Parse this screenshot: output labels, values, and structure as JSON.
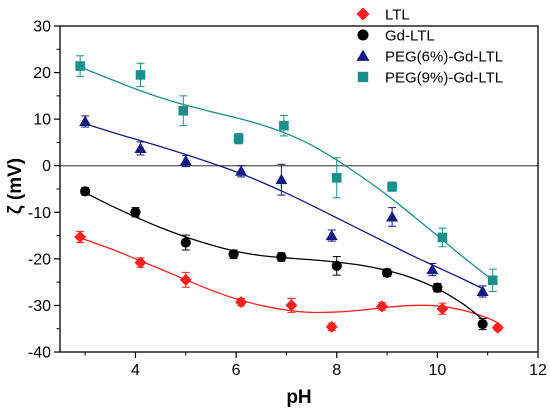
{
  "chart_data": {
    "type": "scatter",
    "xlabel": "pH",
    "ylabel": "ζ (mV)",
    "xlim": [
      2.5,
      12
    ],
    "ylim": [
      -40,
      30
    ],
    "xticks": [
      4,
      6,
      8,
      10,
      12
    ],
    "yticks": [
      -40,
      -30,
      -20,
      -10,
      0,
      10,
      20,
      30
    ],
    "xtick_labels": [
      "4",
      "6",
      "8",
      "10",
      "12"
    ],
    "ytick_labels": [
      "-40",
      "-30",
      "-20",
      "-10",
      "0",
      "10",
      "20",
      "30"
    ],
    "zero_line": true,
    "grid": false,
    "legend_position": "top-right",
    "series": [
      {
        "name": "LTL",
        "marker": "diamond",
        "color": "#ff1f1f",
        "x": [
          2.9,
          4.1,
          5.0,
          6.1,
          7.1,
          7.9,
          8.9,
          10.1,
          11.2
        ],
        "y": [
          -15.3,
          -20.8,
          -24.5,
          -29.3,
          -30.0,
          -34.6,
          -30.2,
          -30.7,
          -34.8
        ],
        "err": [
          1.2,
          1.0,
          1.6,
          0.8,
          1.5,
          0.8,
          0.8,
          1.2,
          0.6
        ],
        "fit": [
          [
            2.9,
            -15.5
          ],
          [
            3.5,
            -17.8
          ],
          [
            4.0,
            -20.0
          ],
          [
            4.5,
            -22.2
          ],
          [
            5.0,
            -24.5
          ],
          [
            5.5,
            -26.7
          ],
          [
            6.0,
            -28.6
          ],
          [
            6.5,
            -30.0
          ],
          [
            7.0,
            -31.0
          ],
          [
            7.5,
            -31.5
          ],
          [
            8.0,
            -31.4
          ],
          [
            8.5,
            -31.0
          ],
          [
            9.0,
            -30.4
          ],
          [
            9.5,
            -30.0
          ],
          [
            10.0,
            -30.1
          ],
          [
            10.5,
            -31.0
          ],
          [
            11.0,
            -32.7
          ],
          [
            11.2,
            -33.8
          ]
        ]
      },
      {
        "name": "Gd-LTL",
        "marker": "circle",
        "color": "#000000",
        "x": [
          3.0,
          4.0,
          5.0,
          5.95,
          6.9,
          8.0,
          9.0,
          10.0,
          10.9
        ],
        "y": [
          -5.5,
          -10.0,
          -16.5,
          -19.0,
          -19.6,
          -21.5,
          -23.0,
          -26.2,
          -34.0
        ],
        "err": [
          0.8,
          1.0,
          1.6,
          0.9,
          0.9,
          2.0,
          0.8,
          0.9,
          1.2
        ],
        "fit": [
          [
            3.0,
            -5.8
          ],
          [
            3.5,
            -8.5
          ],
          [
            4.0,
            -11.0
          ],
          [
            4.5,
            -13.3
          ],
          [
            5.0,
            -15.3
          ],
          [
            5.5,
            -17.0
          ],
          [
            6.0,
            -18.4
          ],
          [
            6.5,
            -19.3
          ],
          [
            7.0,
            -19.8
          ],
          [
            7.5,
            -20.2
          ],
          [
            8.0,
            -20.7
          ],
          [
            8.5,
            -21.4
          ],
          [
            9.0,
            -22.5
          ],
          [
            9.5,
            -24.1
          ],
          [
            10.0,
            -26.4
          ],
          [
            10.5,
            -29.6
          ],
          [
            10.9,
            -33.0
          ]
        ]
      },
      {
        "name": "PEG(6%)-Gd-LTL",
        "marker": "triangle",
        "color": "#141a80",
        "x": [
          3.0,
          4.1,
          5.0,
          6.1,
          6.9,
          7.9,
          9.1,
          9.9,
          10.9
        ],
        "y": [
          9.5,
          3.7,
          1.0,
          -1.2,
          -3.0,
          -15.0,
          -11.0,
          -22.3,
          -27.0
        ],
        "err": [
          1.2,
          1.4,
          1.2,
          1.2,
          3.3,
          1.2,
          2.0,
          1.3,
          1.2
        ],
        "fit": [
          [
            3.0,
            9.0
          ],
          [
            3.5,
            7.3
          ],
          [
            4.0,
            5.7
          ],
          [
            4.5,
            4.1
          ],
          [
            5.0,
            2.4
          ],
          [
            5.5,
            0.6
          ],
          [
            6.0,
            -1.3
          ],
          [
            6.5,
            -3.5
          ],
          [
            7.0,
            -5.9
          ],
          [
            7.5,
            -8.5
          ],
          [
            8.0,
            -11.2
          ],
          [
            8.5,
            -13.9
          ],
          [
            9.0,
            -16.6
          ],
          [
            9.5,
            -19.3
          ],
          [
            10.0,
            -21.8
          ],
          [
            10.5,
            -24.3
          ],
          [
            10.9,
            -26.4
          ]
        ]
      },
      {
        "name": "PEG(9%)-Gd-LTL",
        "marker": "square",
        "color": "#1b8f8a",
        "x": [
          2.9,
          4.1,
          4.95,
          6.05,
          6.95,
          8.0,
          9.1,
          10.1,
          11.1
        ],
        "y": [
          21.4,
          19.5,
          11.8,
          5.8,
          8.6,
          -2.6,
          -4.5,
          -15.4,
          -24.6
        ],
        "err": [
          2.2,
          2.5,
          3.2,
          1.1,
          2.2,
          4.3,
          1.0,
          2.0,
          2.4
        ],
        "fit": [
          [
            2.9,
            21.2
          ],
          [
            3.5,
            18.6
          ],
          [
            4.0,
            16.5
          ],
          [
            4.5,
            14.6
          ],
          [
            5.0,
            13.0
          ],
          [
            5.5,
            11.6
          ],
          [
            6.0,
            10.3
          ],
          [
            6.5,
            8.8
          ],
          [
            7.0,
            6.9
          ],
          [
            7.5,
            4.4
          ],
          [
            8.0,
            1.2
          ],
          [
            8.5,
            -2.4
          ],
          [
            9.0,
            -6.3
          ],
          [
            9.5,
            -10.6
          ],
          [
            10.0,
            -15.0
          ],
          [
            10.5,
            -19.5
          ],
          [
            11.1,
            -24.6
          ]
        ]
      }
    ]
  }
}
